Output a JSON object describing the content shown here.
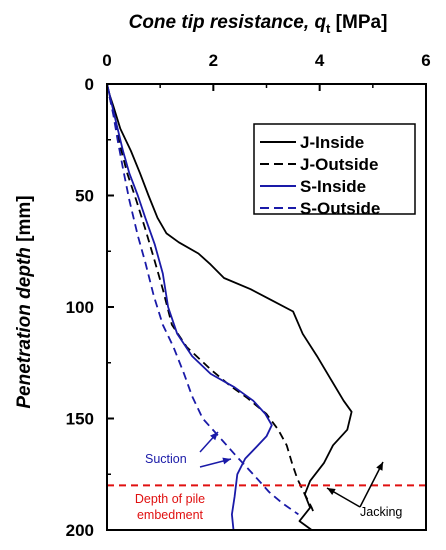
{
  "chart_data": {
    "type": "line",
    "title": "",
    "xlabel": {
      "main": "Cone tip resistance, ",
      "symbol": "q",
      "subscript": "t",
      "unit": " [MPa]"
    },
    "ylabel": {
      "main": "Penetration depth",
      "unit": " [mm]"
    },
    "x_axis_position": "top",
    "y_axis_inverted": true,
    "xlim": [
      0,
      6
    ],
    "ylim": [
      0,
      200
    ],
    "x_ticks": [
      "0",
      "2",
      "4",
      "6"
    ],
    "y_ticks": [
      "0",
      "50",
      "100",
      "150",
      "200"
    ],
    "grid": false,
    "legend_position": "top-right",
    "series": [
      {
        "name": "J-Inside",
        "color": "#000000",
        "dash": "solid",
        "points": [
          [
            0,
            0
          ],
          [
            0.05,
            5
          ],
          [
            0.12,
            10
          ],
          [
            0.25,
            20
          ],
          [
            0.45,
            30
          ],
          [
            0.62,
            40
          ],
          [
            0.78,
            50
          ],
          [
            0.95,
            60
          ],
          [
            1.12,
            67
          ],
          [
            1.35,
            71
          ],
          [
            1.72,
            76
          ],
          [
            1.95,
            81
          ],
          [
            2.2,
            87
          ],
          [
            2.7,
            92
          ],
          [
            3.1,
            97
          ],
          [
            3.5,
            102
          ],
          [
            3.68,
            112
          ],
          [
            3.95,
            122
          ],
          [
            4.2,
            132
          ],
          [
            4.45,
            142
          ],
          [
            4.6,
            147
          ],
          [
            4.52,
            155
          ],
          [
            4.25,
            162
          ],
          [
            4.08,
            170
          ],
          [
            3.82,
            178
          ],
          [
            3.72,
            184
          ],
          [
            3.82,
            190
          ],
          [
            3.62,
            196
          ],
          [
            3.85,
            200
          ]
        ]
      },
      {
        "name": "J-Outside",
        "color": "#000000",
        "dash": "dashed",
        "points": [
          [
            0,
            0
          ],
          [
            0.05,
            6
          ],
          [
            0.15,
            16
          ],
          [
            0.25,
            28
          ],
          [
            0.38,
            40
          ],
          [
            0.55,
            52
          ],
          [
            0.72,
            65
          ],
          [
            0.88,
            78
          ],
          [
            1.05,
            92
          ],
          [
            1.22,
            108
          ],
          [
            1.5,
            118
          ],
          [
            1.95,
            128
          ],
          [
            2.3,
            135
          ],
          [
            2.65,
            141
          ],
          [
            3.0,
            148
          ],
          [
            3.22,
            155
          ],
          [
            3.38,
            162
          ],
          [
            3.48,
            170
          ],
          [
            3.58,
            177
          ],
          [
            3.72,
            184
          ],
          [
            3.85,
            190
          ],
          [
            3.9,
            193
          ]
        ]
      },
      {
        "name": "S-Inside",
        "color": "#1a1aa8",
        "dash": "solid",
        "points": [
          [
            0,
            0
          ],
          [
            0.05,
            5
          ],
          [
            0.1,
            10
          ],
          [
            0.2,
            20
          ],
          [
            0.3,
            30
          ],
          [
            0.42,
            40
          ],
          [
            0.58,
            50
          ],
          [
            0.72,
            60
          ],
          [
            0.9,
            72
          ],
          [
            1.05,
            85
          ],
          [
            1.15,
            100
          ],
          [
            1.32,
            112
          ],
          [
            1.6,
            122
          ],
          [
            1.95,
            130
          ],
          [
            2.4,
            136
          ],
          [
            2.75,
            142
          ],
          [
            2.98,
            148
          ],
          [
            3.1,
            153
          ],
          [
            3.0,
            158
          ],
          [
            2.8,
            163
          ],
          [
            2.6,
            168
          ],
          [
            2.45,
            175
          ],
          [
            2.4,
            185
          ],
          [
            2.35,
            193
          ],
          [
            2.38,
            200
          ]
        ]
      },
      {
        "name": "S-Outside",
        "color": "#1a1aa8",
        "dash": "dashed",
        "points": [
          [
            0,
            0
          ],
          [
            0.05,
            6
          ],
          [
            0.12,
            14
          ],
          [
            0.2,
            25
          ],
          [
            0.3,
            38
          ],
          [
            0.42,
            52
          ],
          [
            0.58,
            68
          ],
          [
            0.72,
            80
          ],
          [
            0.88,
            95
          ],
          [
            1.05,
            108
          ],
          [
            1.25,
            118
          ],
          [
            1.45,
            130
          ],
          [
            1.6,
            140
          ],
          [
            1.8,
            150
          ],
          [
            2.1,
            158
          ],
          [
            2.4,
            166
          ],
          [
            2.75,
            175
          ],
          [
            3.05,
            183
          ],
          [
            3.3,
            188
          ],
          [
            3.6,
            193
          ]
        ]
      }
    ],
    "reference_line": {
      "y": 180,
      "color": "#e01010",
      "dash": "dashed"
    },
    "annotations": [
      {
        "text": "Suction",
        "color": "#1a1aa8"
      },
      {
        "text": "Depth of pile",
        "color": "#e01010"
      },
      {
        "text": "embedment",
        "color": "#e01010"
      },
      {
        "text": "Jacking",
        "color": "#000000"
      }
    ]
  }
}
